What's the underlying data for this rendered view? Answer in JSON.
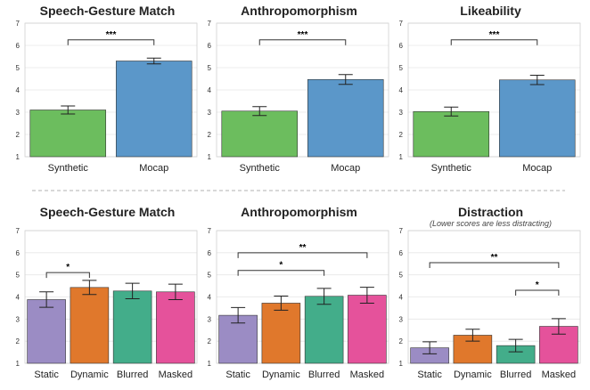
{
  "colors": {
    "synthetic": "#6cbd5e",
    "mocap": "#5b97c9",
    "static": "#9b8cc4",
    "dynamic": "#e0782c",
    "blurred": "#43ad8a",
    "masked": "#e5529b"
  },
  "chart_data": [
    {
      "type": "bar",
      "title": "Speech-Gesture Match",
      "subtitle": "",
      "ylim": [
        1,
        7
      ],
      "yticks": [
        1,
        2,
        3,
        4,
        5,
        6,
        7
      ],
      "grid": true,
      "categories": [
        "Synthetic",
        "Mocap"
      ],
      "values": [
        3.1,
        5.3
      ],
      "errors": [
        0.18,
        0.13
      ],
      "bar_colors": [
        "synthetic",
        "mocap"
      ],
      "significance": [
        {
          "from": 0,
          "to": 1,
          "label": "***"
        }
      ]
    },
    {
      "type": "bar",
      "title": "Anthropomorphism",
      "subtitle": "",
      "ylim": [
        1,
        7
      ],
      "yticks": [
        1,
        2,
        3,
        4,
        5,
        6,
        7
      ],
      "grid": true,
      "categories": [
        "Synthetic",
        "Mocap"
      ],
      "values": [
        3.05,
        4.47
      ],
      "errors": [
        0.2,
        0.22
      ],
      "bar_colors": [
        "synthetic",
        "mocap"
      ],
      "significance": [
        {
          "from": 0,
          "to": 1,
          "label": "***"
        }
      ]
    },
    {
      "type": "bar",
      "title": "Likeability",
      "subtitle": "",
      "ylim": [
        1,
        7
      ],
      "yticks": [
        1,
        2,
        3,
        4,
        5,
        6,
        7
      ],
      "grid": true,
      "categories": [
        "Synthetic",
        "Mocap"
      ],
      "values": [
        3.03,
        4.45
      ],
      "errors": [
        0.2,
        0.21
      ],
      "bar_colors": [
        "synthetic",
        "mocap"
      ],
      "significance": [
        {
          "from": 0,
          "to": 1,
          "label": "***"
        }
      ]
    },
    {
      "type": "bar",
      "title": "Speech-Gesture Match",
      "subtitle": "",
      "ylim": [
        1,
        7
      ],
      "yticks": [
        1,
        2,
        3,
        4,
        5,
        6,
        7
      ],
      "grid": true,
      "categories": [
        "Static",
        "Dynamic",
        "Blurred",
        "Masked"
      ],
      "values": [
        3.88,
        4.43,
        4.27,
        4.23
      ],
      "errors": [
        0.35,
        0.32,
        0.35,
        0.35
      ],
      "bar_colors": [
        "static",
        "dynamic",
        "blurred",
        "masked"
      ],
      "significance": [
        {
          "from": 0,
          "to": 1,
          "label": "*"
        }
      ]
    },
    {
      "type": "bar",
      "title": "Anthropomorphism",
      "subtitle": "",
      "ylim": [
        1,
        7
      ],
      "yticks": [
        1,
        2,
        3,
        4,
        5,
        6,
        7
      ],
      "grid": true,
      "categories": [
        "Static",
        "Dynamic",
        "Blurred",
        "Masked"
      ],
      "values": [
        3.17,
        3.72,
        4.03,
        4.08
      ],
      "errors": [
        0.35,
        0.32,
        0.36,
        0.36
      ],
      "bar_colors": [
        "static",
        "dynamic",
        "blurred",
        "masked"
      ],
      "significance": [
        {
          "from": 0,
          "to": 2,
          "label": "*"
        },
        {
          "from": 0,
          "to": 3,
          "label": "**"
        }
      ]
    },
    {
      "type": "bar",
      "title": "Distraction",
      "subtitle": "(Lower scores are less distracting)",
      "ylim": [
        1,
        7
      ],
      "yticks": [
        1,
        2,
        3,
        4,
        5,
        6,
        7
      ],
      "grid": true,
      "categories": [
        "Static",
        "Dynamic",
        "Blurred",
        "Masked"
      ],
      "values": [
        1.7,
        2.27,
        1.8,
        2.67
      ],
      "errors": [
        0.27,
        0.27,
        0.28,
        0.35
      ],
      "bar_colors": [
        "static",
        "dynamic",
        "blurred",
        "masked"
      ],
      "significance": [
        {
          "from": 2,
          "to": 3,
          "label": "*"
        },
        {
          "from": 0,
          "to": 3,
          "label": "**"
        }
      ]
    }
  ]
}
